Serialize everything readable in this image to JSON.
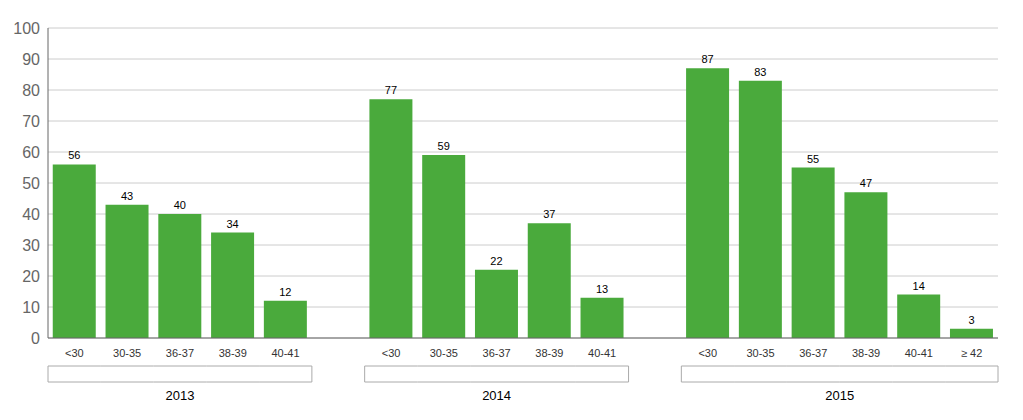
{
  "chart_data": {
    "type": "bar",
    "groups": [
      {
        "name": "2013",
        "categories": [
          "<30",
          "30-35",
          "36-37",
          "38-39",
          "40-41"
        ],
        "values": [
          56,
          43,
          40,
          34,
          12
        ]
      },
      {
        "name": "2014",
        "categories": [
          "<30",
          "30-35",
          "36-37",
          "38-39",
          "40-41"
        ],
        "values": [
          77,
          59,
          22,
          37,
          13
        ]
      },
      {
        "name": "2015",
        "categories": [
          "<30",
          "30-35",
          "36-37",
          "38-39",
          "40-41",
          "≥ 42"
        ],
        "values": [
          87,
          83,
          55,
          47,
          14,
          3
        ]
      }
    ],
    "color": "#4aaa3c",
    "ylim": [
      0,
      100
    ],
    "yticks": [
      0,
      10,
      20,
      30,
      40,
      50,
      60,
      70,
      80,
      90,
      100
    ],
    "grid": true,
    "data_labels": true
  }
}
